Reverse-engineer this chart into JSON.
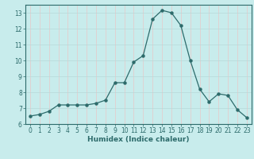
{
  "x": [
    0,
    1,
    2,
    3,
    4,
    5,
    6,
    7,
    8,
    9,
    10,
    11,
    12,
    13,
    14,
    15,
    16,
    17,
    18,
    19,
    20,
    21,
    22,
    23
  ],
  "y": [
    6.5,
    6.6,
    6.8,
    7.2,
    7.2,
    7.2,
    7.2,
    7.3,
    7.5,
    8.6,
    8.6,
    9.9,
    10.3,
    12.6,
    13.15,
    13.0,
    12.2,
    10.0,
    8.2,
    7.4,
    7.9,
    7.8,
    6.9,
    6.4
  ],
  "line_color": "#2d6b6b",
  "marker": "o",
  "marker_size": 2.2,
  "bg_color": "#c8ecec",
  "grid_color_h": "#b8d8d8",
  "grid_color_v": "#e8c8c8",
  "xlabel": "Humidex (Indice chaleur)",
  "xlim": [
    -0.5,
    23.5
  ],
  "ylim": [
    6,
    13.5
  ],
  "yticks": [
    6,
    7,
    8,
    9,
    10,
    11,
    12,
    13
  ],
  "xticks": [
    0,
    1,
    2,
    3,
    4,
    5,
    6,
    7,
    8,
    9,
    10,
    11,
    12,
    13,
    14,
    15,
    16,
    17,
    18,
    19,
    20,
    21,
    22,
    23
  ],
  "tick_color": "#2d6b6b",
  "tick_fontsize": 5.5,
  "xlabel_fontsize": 6.5,
  "spine_color": "#2d6b6b",
  "linewidth": 0.9
}
